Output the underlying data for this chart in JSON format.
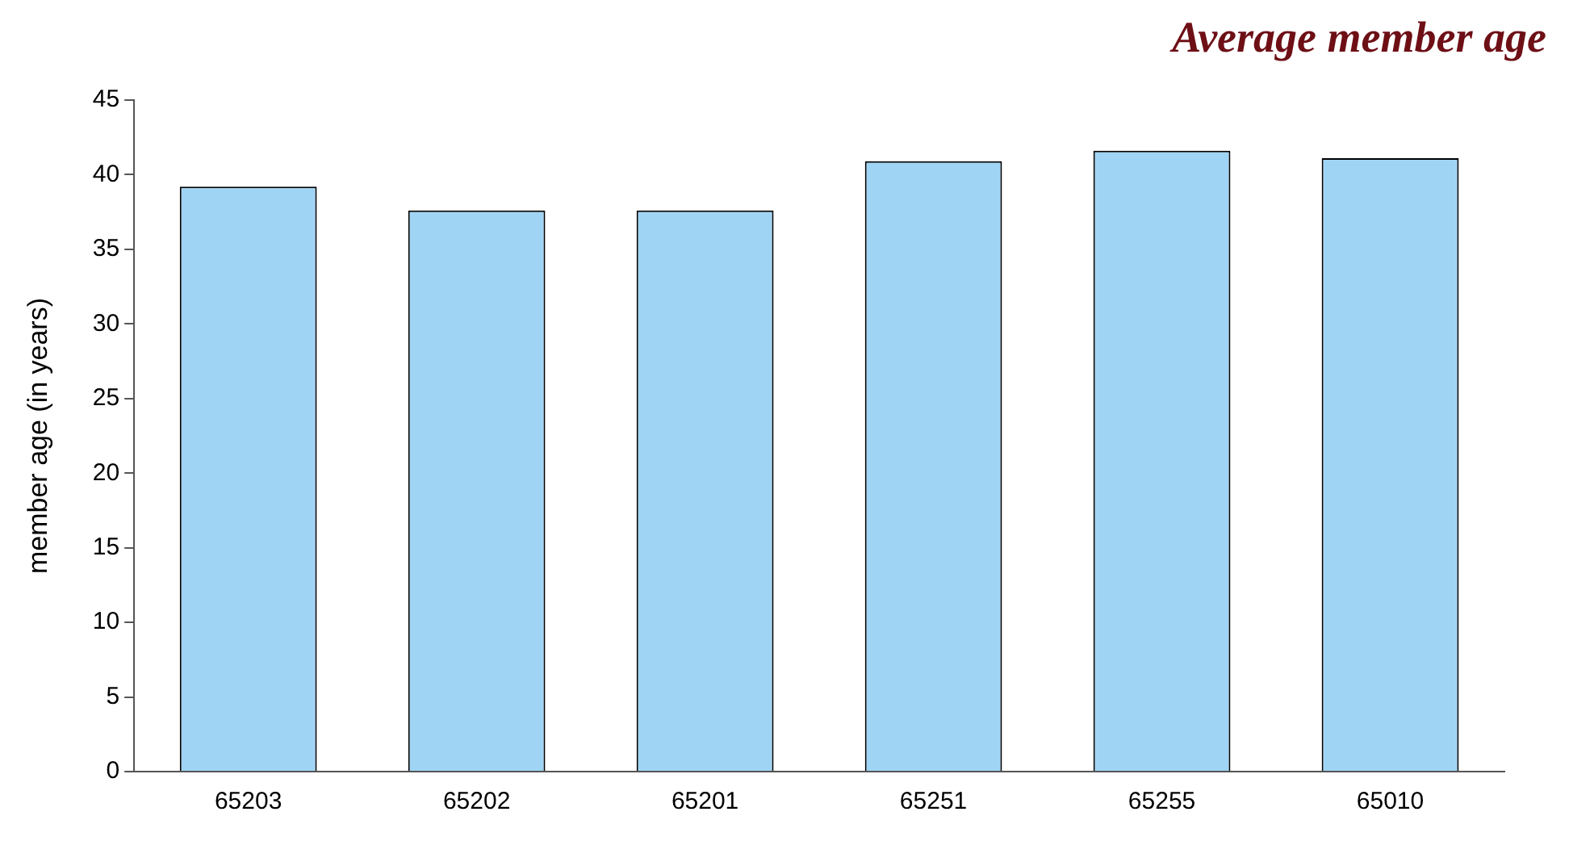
{
  "chart_data": {
    "type": "bar",
    "title": "Average member age",
    "ylabel": "member age (in years)",
    "categories": [
      "65203",
      "65202",
      "65201",
      "65251",
      "65255",
      "65010"
    ],
    "values": [
      39.2,
      37.6,
      37.6,
      40.9,
      41.6,
      41.1
    ],
    "color": "#a0d4f4",
    "ylim": [
      0,
      45
    ],
    "yticks": [
      0,
      5,
      10,
      15,
      20,
      25,
      30,
      35,
      40,
      45
    ],
    "grid": false,
    "legend": false
  }
}
